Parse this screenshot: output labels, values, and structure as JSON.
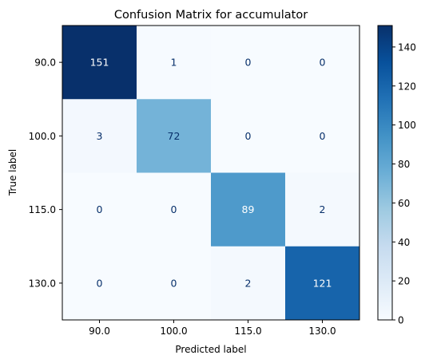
{
  "chart_data": {
    "type": "heatmap",
    "title": "Confusion Matrix for accumulator",
    "xlabel": "Predicted label",
    "ylabel": "True label",
    "x_categories": [
      "90.0",
      "100.0",
      "115.0",
      "130.0"
    ],
    "y_categories": [
      "90.0",
      "100.0",
      "115.0",
      "130.0"
    ],
    "values": [
      [
        151,
        1,
        0,
        0
      ],
      [
        3,
        72,
        0,
        0
      ],
      [
        0,
        0,
        89,
        2
      ],
      [
        0,
        0,
        2,
        121
      ]
    ],
    "colormap": "Blues",
    "vmin": 0,
    "vmax": 151,
    "colorbar_ticks": [
      "0",
      "20",
      "40",
      "60",
      "80",
      "100",
      "120",
      "140"
    ],
    "text_color_light": "#ffffff",
    "text_color_dark": "#08306b"
  }
}
